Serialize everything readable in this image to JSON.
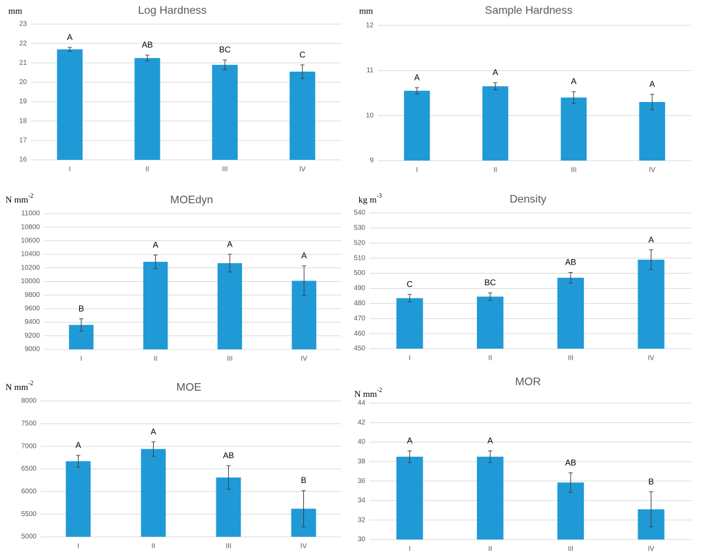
{
  "colors": {
    "bar": "#1f9ad6",
    "grid": "#d9d9d9",
    "text": "#595959"
  },
  "chart_data": [
    {
      "type": "bar",
      "title": "Log Hardness",
      "unit": "mm",
      "unit_sup": "",
      "categories": [
        "I",
        "II",
        "III",
        "IV"
      ],
      "values": [
        21.7,
        21.25,
        20.9,
        20.55
      ],
      "errors": [
        0.1,
        0.15,
        0.25,
        0.35
      ],
      "letters": [
        "A",
        "AB",
        "BC",
        "C"
      ],
      "ylim": [
        16,
        23
      ],
      "yticks": [
        16,
        17,
        18,
        19,
        20,
        21,
        22,
        23
      ],
      "grid": true
    },
    {
      "type": "bar",
      "title": "Sample Hardness",
      "unit": "mm",
      "unit_sup": "",
      "categories": [
        "I",
        "II",
        "III",
        "IV"
      ],
      "values": [
        10.55,
        10.65,
        10.4,
        10.3
      ],
      "errors": [
        0.07,
        0.08,
        0.13,
        0.17
      ],
      "letters": [
        "A",
        "A",
        "A",
        "A"
      ],
      "ylim": [
        9,
        12
      ],
      "yticks": [
        9,
        10,
        11,
        12
      ],
      "grid": true
    },
    {
      "type": "bar",
      "title": "MOEdyn",
      "unit": "N mm",
      "unit_sup": "-2",
      "categories": [
        "I",
        "II",
        "III",
        "IV"
      ],
      "values": [
        9360,
        10290,
        10270,
        10010
      ],
      "errors": [
        90,
        100,
        130,
        220
      ],
      "letters": [
        "B",
        "A",
        "A",
        "A"
      ],
      "ylim": [
        9000,
        11000
      ],
      "yticks": [
        9000,
        9200,
        9400,
        9600,
        9800,
        10000,
        10200,
        10400,
        10600,
        10800,
        11000
      ],
      "grid": true
    },
    {
      "type": "bar",
      "title": "Density",
      "unit": "kg m",
      "unit_sup": "-3",
      "categories": [
        "I",
        "II",
        "III",
        "IV"
      ],
      "values": [
        483.5,
        484.5,
        497,
        509
      ],
      "errors": [
        2.5,
        2.5,
        3.5,
        6.5
      ],
      "letters": [
        "C",
        "BC",
        "AB",
        "A"
      ],
      "ylim": [
        450,
        540
      ],
      "yticks": [
        450,
        460,
        470,
        480,
        490,
        500,
        510,
        520,
        530,
        540
      ],
      "grid": true
    },
    {
      "type": "bar",
      "title": "MOE",
      "unit": "N mm",
      "unit_sup": "-2",
      "categories": [
        "I",
        "II",
        "III",
        "IV"
      ],
      "values": [
        6670,
        6940,
        6310,
        5620
      ],
      "errors": [
        130,
        160,
        260,
        400
      ],
      "letters": [
        "A",
        "A",
        "AB",
        "B"
      ],
      "ylim": [
        5000,
        8000
      ],
      "yticks": [
        5000,
        5500,
        6000,
        6500,
        7000,
        7500,
        8000
      ],
      "grid": true
    },
    {
      "type": "bar",
      "title": "MOR",
      "unit": "N mm",
      "unit_sup": "-2",
      "categories": [
        "I",
        "II",
        "III",
        "IV"
      ],
      "values": [
        38.5,
        38.5,
        35.85,
        33.1
      ],
      "errors": [
        0.6,
        0.6,
        1.0,
        1.8
      ],
      "letters": [
        "A",
        "A",
        "AB",
        "B"
      ],
      "ylim": [
        30,
        44
      ],
      "yticks": [
        30,
        32,
        34,
        36,
        38,
        40,
        42,
        44
      ],
      "grid": true
    }
  ]
}
